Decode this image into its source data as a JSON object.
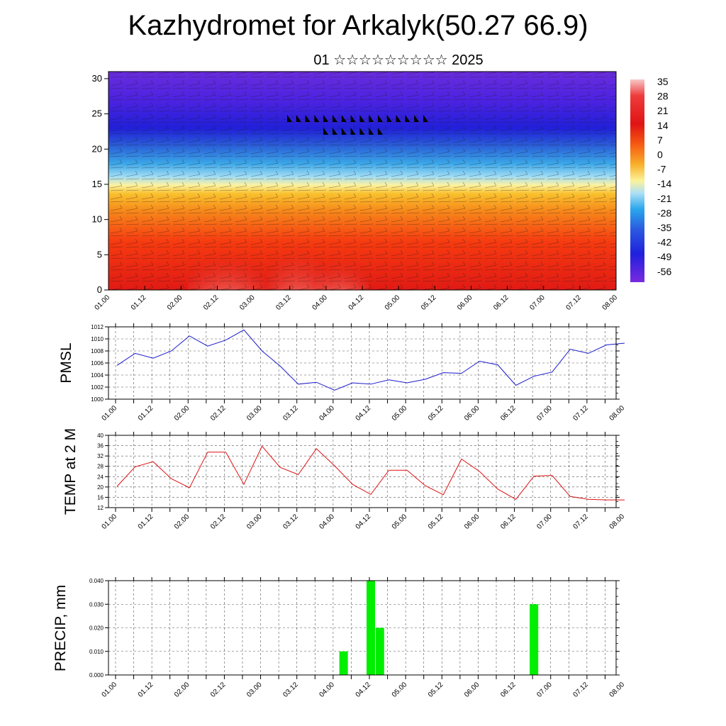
{
  "header": {
    "title": "Kazhydromet for Arkalyk(50.27 66.9)",
    "subtitle": "01 ☆☆☆☆☆☆☆☆☆ 2025"
  },
  "colors": {
    "pmsl_line": "#1a1acc",
    "temp_line": "#dd1111",
    "precip_bar": "#00ee00"
  },
  "time_labels": [
    "01.00",
    "01.12",
    "02.00",
    "02.12",
    "03.00",
    "03.12",
    "04.00",
    "04.12",
    "05.00",
    "05.12",
    "06.00",
    "06.12",
    "07.00",
    "07.12",
    "08.00"
  ],
  "chart_data": [
    {
      "type": "heatmap",
      "name": "cross-section",
      "y_ticks": [
        0,
        5,
        10,
        15,
        20,
        25,
        30
      ],
      "ylim": [
        0,
        31
      ],
      "colorbar_labels": [
        "35",
        "28",
        "21",
        "14",
        "7",
        "0",
        "-7",
        "-14",
        "-21",
        "-28",
        "-35",
        "-42",
        "-49",
        "-56"
      ]
    },
    {
      "type": "line",
      "ylabel": "PMSL",
      "ylim": [
        1000,
        1012
      ],
      "y_ticks": [
        1000,
        1002,
        1004,
        1006,
        1008,
        1010,
        1012
      ],
      "x_hours": [
        0,
        6,
        12,
        18,
        24,
        30,
        36,
        42,
        48,
        54,
        60,
        66,
        72,
        78,
        84,
        90,
        96,
        102,
        108,
        114,
        120,
        126,
        132,
        138,
        144,
        150,
        156,
        162,
        168
      ],
      "values": [
        1005.6,
        1007.6,
        1006.8,
        1008.0,
        1010.5,
        1008.8,
        1009.8,
        1011.5,
        1008.0,
        1005.5,
        1002.5,
        1002.8,
        1001.5,
        1002.7,
        1002.5,
        1003.2,
        1002.7,
        1003.3,
        1004.4,
        1004.3,
        1006.3,
        1005.7,
        1002.3,
        1003.8,
        1004.5,
        1008.3,
        1007.6,
        1009.0,
        1009.3
      ]
    },
    {
      "type": "line",
      "ylabel": "TEMP at 2 M",
      "ylim": [
        12,
        40
      ],
      "y_ticks": [
        12,
        16,
        20,
        24,
        28,
        32,
        36,
        40
      ],
      "x_hours": [
        0,
        6,
        12,
        18,
        24,
        30,
        36,
        42,
        48,
        54,
        60,
        66,
        72,
        78,
        84,
        90,
        96,
        102,
        108,
        114,
        120,
        126,
        132,
        138,
        144,
        150,
        156,
        162,
        168
      ],
      "values": [
        20.2,
        27.8,
        29.8,
        23.2,
        19.7,
        33.5,
        33.5,
        21.0,
        35.8,
        27.6,
        24.8,
        34.8,
        28.2,
        21.0,
        17.1,
        26.5,
        26.5,
        20.5,
        17.0,
        30.8,
        26.0,
        19.2,
        15.2,
        24.2,
        24.5,
        16.3,
        15.2,
        15.0,
        15.0
      ]
    },
    {
      "type": "bar",
      "ylabel": "PRECIP, mm",
      "ylim": [
        0,
        0.04
      ],
      "y_ticks": [
        "0.000",
        "0.010",
        "0.020",
        "0.030",
        "0.040"
      ],
      "bars": [
        {
          "hour": 75,
          "value": 0.01
        },
        {
          "hour": 84,
          "value": 0.04
        },
        {
          "hour": 87,
          "value": 0.02
        },
        {
          "hour": 138,
          "value": 0.03
        }
      ]
    }
  ]
}
